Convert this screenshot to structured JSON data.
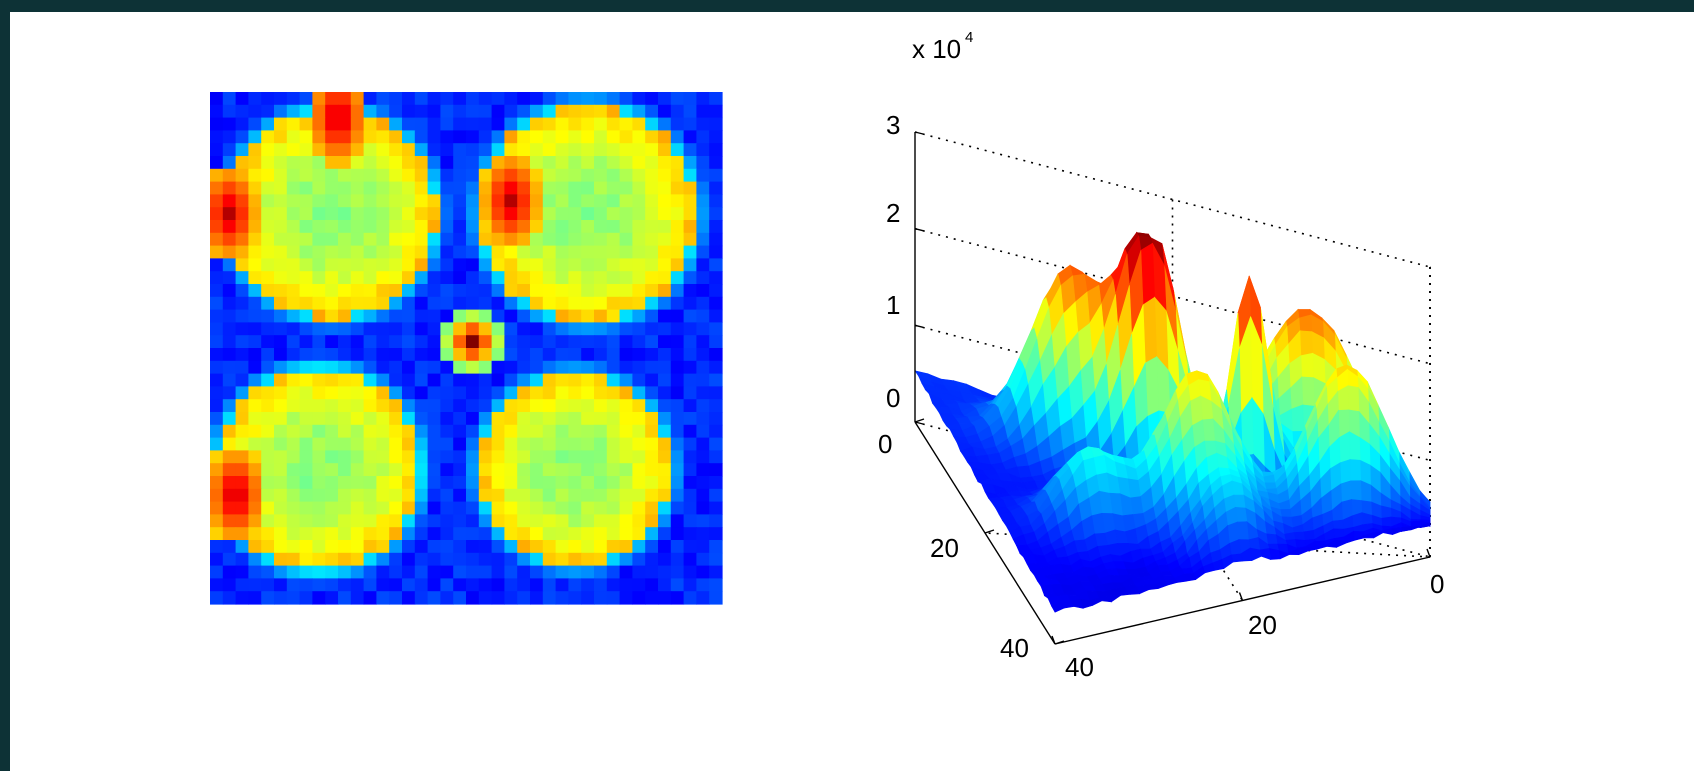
{
  "chart_data": [
    {
      "type": "heatmap",
      "colormap": "jet",
      "grid_size": [
        40,
        40
      ],
      "axes_visible": false,
      "features": [
        {
          "region": "top-left",
          "shape": "ring",
          "value_range": [
            0.45,
            0.9
          ]
        },
        {
          "region": "top-right",
          "shape": "ring",
          "value_range": [
            0.35,
            0.85
          ]
        },
        {
          "region": "center",
          "shape": "spot",
          "peak": 1.0
        },
        {
          "region": "bottom-left",
          "shape": "ring",
          "value_range": [
            0.5,
            0.8
          ]
        },
        {
          "region": "bottom-right",
          "shape": "ring",
          "value_range": [
            0.4,
            0.7
          ]
        }
      ],
      "background_level": 0.12
    },
    {
      "type": "surface",
      "colormap": "jet",
      "grid_size": [
        40,
        40
      ],
      "x_ticks": [
        "0",
        "20",
        "40"
      ],
      "y_ticks": [
        "0",
        "20",
        "40"
      ],
      "z_ticks": [
        "0",
        "1",
        "2",
        "3"
      ],
      "z_multiplier": "x 10",
      "z_multiplier_exponent": "4",
      "zlim": [
        0,
        30000
      ],
      "grid": true,
      "peaks": [
        {
          "x": 15,
          "y": 15,
          "z": 29000
        },
        {
          "x": 15,
          "y": 25,
          "z": 23000
        },
        {
          "x": 25,
          "y": 13,
          "z": 20000
        },
        {
          "x": 25,
          "y": 26,
          "z": 19000
        },
        {
          "x": 20,
          "y": 20,
          "z": 24000
        }
      ]
    }
  ],
  "ticks_x": [
    "0",
    "20",
    "40"
  ],
  "ticks_y": [
    "0",
    "20",
    "40"
  ],
  "ticks_z": [
    "0",
    "1",
    "2",
    "3"
  ],
  "multiplier_base": "x 10",
  "multiplier_exp": "4"
}
